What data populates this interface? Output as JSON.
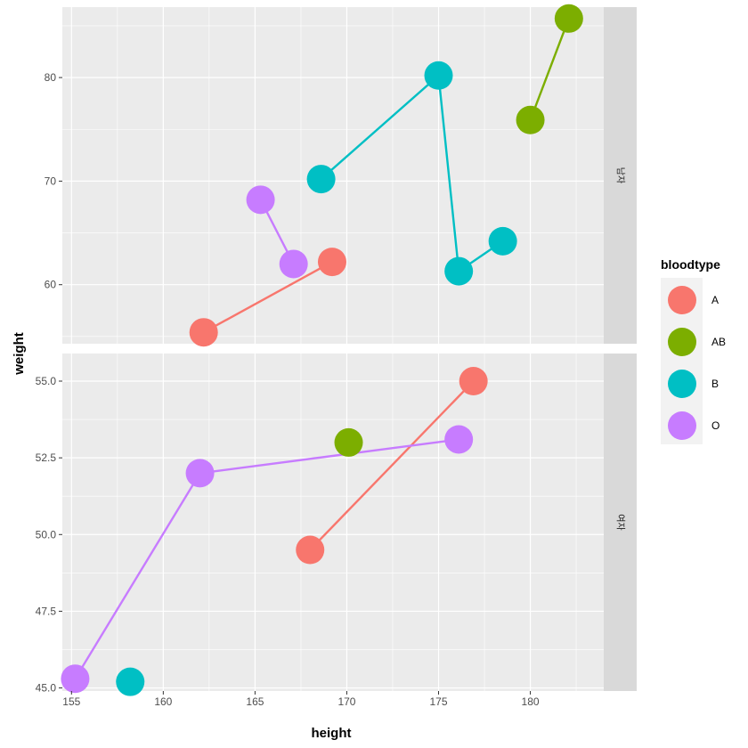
{
  "chart_data": {
    "type": "line",
    "xlabel": "height",
    "ylabel": "weight",
    "legend_title": "bloodtype",
    "legend_position": "right",
    "grid": true,
    "xlim": [
      154.5,
      184
    ],
    "x_ticks": [
      155,
      160,
      165,
      170,
      175,
      180
    ],
    "x_tick_labels": [
      "155",
      "160",
      "165",
      "170",
      "175",
      "180"
    ],
    "groups": [
      {
        "name": "A",
        "color": "#F8766D"
      },
      {
        "name": "AB",
        "color": "#7CAE00"
      },
      {
        "name": "B",
        "color": "#00BFC4"
      },
      {
        "name": "O",
        "color": "#C77CFF"
      }
    ],
    "panels": [
      {
        "strip": "남자",
        "ylim": [
          54.3,
          86.8
        ],
        "y_ticks": [
          60,
          70,
          80
        ],
        "y_tick_labels": [
          "60",
          "70",
          "80"
        ],
        "series": [
          {
            "name": "A",
            "points": [
              [
                162.2,
                55.4
              ],
              [
                169.2,
                62.2
              ]
            ]
          },
          {
            "name": "AB",
            "points": [
              [
                180.0,
                75.9
              ],
              [
                182.1,
                85.7
              ]
            ]
          },
          {
            "name": "B",
            "points": [
              [
                168.6,
                70.2
              ],
              [
                175.0,
                80.2
              ],
              [
                176.1,
                61.3
              ],
              [
                178.5,
                64.2
              ]
            ]
          },
          {
            "name": "O",
            "points": [
              [
                165.3,
                68.2
              ],
              [
                167.1,
                62.0
              ]
            ]
          }
        ]
      },
      {
        "strip": "여자",
        "ylim": [
          44.9,
          55.9
        ],
        "y_ticks": [
          45.0,
          47.5,
          50.0,
          52.5,
          55.0
        ],
        "y_tick_labels": [
          "45.0",
          "47.5",
          "50.0",
          "52.5",
          "55.0"
        ],
        "series": [
          {
            "name": "A",
            "points": [
              [
                168.0,
                49.5
              ],
              [
                176.9,
                55.0
              ]
            ]
          },
          {
            "name": "AB",
            "points": [
              [
                170.1,
                53.0
              ]
            ]
          },
          {
            "name": "B",
            "points": [
              [
                158.2,
                45.2
              ]
            ]
          },
          {
            "name": "O",
            "points": [
              [
                155.2,
                45.3
              ],
              [
                162.0,
                52.0
              ],
              [
                176.1,
                53.1
              ]
            ]
          }
        ]
      }
    ]
  }
}
